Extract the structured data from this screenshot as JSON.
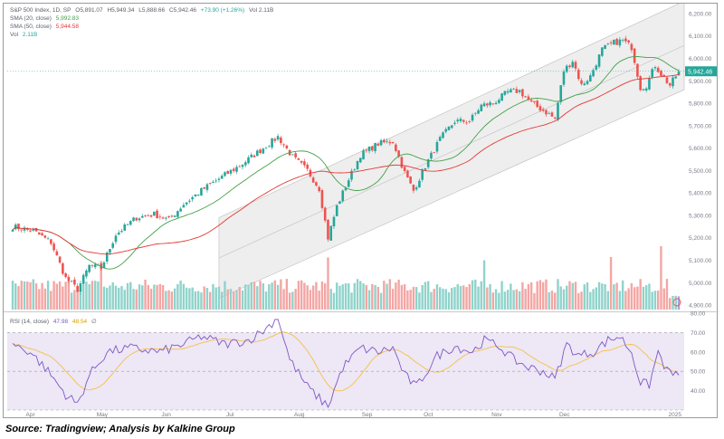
{
  "header": {
    "symbol_line": "S&P 500 Index, 1D, SP",
    "open": "O5,891.07",
    "high": "H5,949.34",
    "low": "L5,888.66",
    "close": "C5,942.46",
    "change": "+73.90 (+1.26%)",
    "vol_inline": "Vol 2.11B",
    "sma20_label": "SMA (20, close)",
    "sma20_value": "5,992.83",
    "sma50_label": "SMA (50, close)",
    "sma50_value": "5,944.58",
    "vol_label": "Vol",
    "vol_value": "2.11B"
  },
  "rsi_header": {
    "label": "RSI (14, close)",
    "rsi_value": "47.98",
    "ma_value": "48.54",
    "extra": "∅"
  },
  "price_badge": "5,942.46",
  "source": "Source: Tradingview; Analysis by Kalkine Group",
  "colors": {
    "up": "#26a69a",
    "down": "#ef5350",
    "sma20": "#43a047",
    "sma50": "#e53935",
    "rsi": "#7e57c2",
    "rsi_ma": "#f5c242",
    "channel": "#e8e8e8",
    "badge": "#26a69a"
  },
  "chart_data": [
    {
      "type": "candlestick",
      "title": "S&P 500 Index, 1D, SP",
      "y_axis_ticks": [
        "6,200.00",
        "6,100.00",
        "6,000.00",
        "5,900.00",
        "5,800.00",
        "5,700.00",
        "5,600.00",
        "5,500.00",
        "5,400.00",
        "5,300.00",
        "5,200.00",
        "5,100.00",
        "5,000.00",
        "4,900.00"
      ],
      "x_axis_ticks": [
        "Apr",
        "May",
        "Jun",
        "Jul",
        "Aug",
        "Sep",
        "Oct",
        "Nov",
        "Dec",
        "2025"
      ],
      "ylim": [
        4880,
        6220
      ],
      "last_close": 5942.46,
      "series": [
        {
          "name": "SMA (20, close)",
          "last": 5992.83
        },
        {
          "name": "SMA (50, close)",
          "last": 5944.58
        }
      ],
      "anchor_closes": [
        [
          0,
          5250
        ],
        [
          7,
          5230
        ],
        [
          13,
          5180
        ],
        [
          18,
          5020
        ],
        [
          22,
          4970
        ],
        [
          26,
          5075
        ],
        [
          30,
          5065
        ],
        [
          35,
          5215
        ],
        [
          42,
          5290
        ],
        [
          48,
          5305
        ],
        [
          53,
          5280
        ],
        [
          58,
          5350
        ],
        [
          65,
          5420
        ],
        [
          72,
          5480
        ],
        [
          78,
          5530
        ],
        [
          85,
          5600
        ],
        [
          90,
          5650
        ],
        [
          95,
          5560
        ],
        [
          100,
          5500
        ],
        [
          104,
          5420
        ],
        [
          107,
          5200
        ],
        [
          110,
          5340
        ],
        [
          114,
          5460
        ],
        [
          118,
          5570
        ],
        [
          124,
          5620
        ],
        [
          129,
          5630
        ],
        [
          133,
          5490
        ],
        [
          136,
          5410
        ],
        [
          140,
          5520
        ],
        [
          145,
          5640
        ],
        [
          150,
          5720
        ],
        [
          155,
          5720
        ],
        [
          159,
          5790
        ],
        [
          163,
          5800
        ],
        [
          168,
          5850
        ],
        [
          172,
          5855
        ],
        [
          176,
          5800
        ],
        [
          181,
          5760
        ],
        [
          184,
          5730
        ],
        [
          187,
          5945
        ],
        [
          190,
          5990
        ],
        [
          193,
          5880
        ],
        [
          196,
          5920
        ],
        [
          200,
          6040
        ],
        [
          204,
          6070
        ],
        [
          207,
          6080
        ],
        [
          210,
          6050
        ],
        [
          213,
          5870
        ],
        [
          215,
          5880
        ],
        [
          218,
          5970
        ],
        [
          220,
          5930
        ],
        [
          223,
          5880
        ],
        [
          226,
          5942.46
        ]
      ],
      "volume_note": "volume histogram shown at bottom of price pane, last Vol 2.11B"
    },
    {
      "type": "line",
      "title": "RSI (14, close)",
      "y_axis_ticks": [
        "80.00",
        "70.00",
        "60.00",
        "50.00",
        "40.00"
      ],
      "ylim": [
        30,
        80
      ],
      "bands": [
        30,
        50,
        70
      ],
      "series": [
        {
          "name": "RSI",
          "last": 47.98
        },
        {
          "name": "RSI MA",
          "last": 48.54
        }
      ],
      "anchor_values": [
        [
          0,
          64
        ],
        [
          6,
          60
        ],
        [
          12,
          50
        ],
        [
          18,
          38
        ],
        [
          22,
          33
        ],
        [
          26,
          48
        ],
        [
          32,
          60
        ],
        [
          40,
          62
        ],
        [
          50,
          60
        ],
        [
          58,
          64
        ],
        [
          64,
          68
        ],
        [
          72,
          64
        ],
        [
          80,
          66
        ],
        [
          86,
          72
        ],
        [
          90,
          78
        ],
        [
          94,
          56
        ],
        [
          100,
          42
        ],
        [
          104,
          36
        ],
        [
          107,
          32
        ],
        [
          112,
          52
        ],
        [
          118,
          62
        ],
        [
          124,
          60
        ],
        [
          129,
          62
        ],
        [
          133,
          48
        ],
        [
          137,
          42
        ],
        [
          144,
          58
        ],
        [
          150,
          63
        ],
        [
          156,
          60
        ],
        [
          160,
          66
        ],
        [
          165,
          63
        ],
        [
          170,
          56
        ],
        [
          175,
          52
        ],
        [
          180,
          50
        ],
        [
          184,
          46
        ],
        [
          188,
          64
        ],
        [
          192,
          58
        ],
        [
          197,
          60
        ],
        [
          202,
          66
        ],
        [
          206,
          68
        ],
        [
          210,
          60
        ],
        [
          213,
          44
        ],
        [
          216,
          43
        ],
        [
          219,
          60
        ],
        [
          222,
          50
        ],
        [
          226,
          47.98
        ]
      ]
    }
  ]
}
